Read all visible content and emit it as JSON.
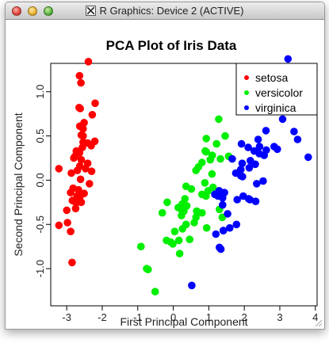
{
  "window": {
    "title": "R Graphics: Device 2 (ACTIVE)"
  },
  "chart_data": {
    "type": "scatter",
    "title": "PCA Plot of Iris Data",
    "xlabel": "First Principal Component",
    "ylabel": "Second Principal Component",
    "xlim": [
      -3.45,
      4.05
    ],
    "ylim": [
      -1.42,
      1.32
    ],
    "xticks": [
      "-3",
      "-2",
      "-1",
      "0",
      "1",
      "2",
      "3",
      "4"
    ],
    "xtick_values": [
      -3,
      -2,
      -1,
      0,
      1,
      2,
      3,
      4
    ],
    "yticks": [
      "-1.0",
      "-0.5",
      "0.0",
      "0.5",
      "1.0"
    ],
    "ytick_values": [
      -1.0,
      -0.5,
      0.0,
      0.5,
      1.0
    ],
    "grid": false,
    "legend_position": "top-right",
    "series": [
      {
        "name": "setosa",
        "color": "#ff0000",
        "points": [
          [
            -2.68,
            0.32
          ],
          [
            -2.71,
            -0.18
          ],
          [
            -2.89,
            -0.14
          ],
          [
            -2.75,
            -0.32
          ],
          [
            -2.73,
            0.33
          ],
          [
            -2.28,
            0.74
          ],
          [
            -2.82,
            -0.09
          ],
          [
            -2.63,
            0.16
          ],
          [
            -2.89,
            -0.58
          ],
          [
            -2.67,
            -0.11
          ],
          [
            -2.51,
            0.65
          ],
          [
            -2.61,
            0.01
          ],
          [
            -2.79,
            -0.24
          ],
          [
            -3.22,
            -0.51
          ],
          [
            -2.64,
            1.18
          ],
          [
            -2.39,
            1.34
          ],
          [
            -2.62,
            0.81
          ],
          [
            -2.65,
            0.31
          ],
          [
            -2.2,
            0.87
          ],
          [
            -2.59,
            0.51
          ],
          [
            -2.31,
            0.39
          ],
          [
            -2.54,
            0.43
          ],
          [
            -3.22,
            0.13
          ],
          [
            -2.3,
            0.1
          ],
          [
            -2.36,
            -0.04
          ],
          [
            -2.51,
            -0.15
          ],
          [
            -2.47,
            0.13
          ],
          [
            -2.56,
            0.37
          ],
          [
            -2.64,
            0.31
          ],
          [
            -2.63,
            -0.19
          ],
          [
            -2.59,
            -0.25
          ],
          [
            -2.41,
            0.42
          ],
          [
            -2.65,
            0.82
          ],
          [
            -2.6,
            1.1
          ],
          [
            -2.67,
            -0.11
          ],
          [
            -2.87,
            0.08
          ],
          [
            -2.63,
            0.61
          ],
          [
            -2.8,
            0.25
          ],
          [
            -2.98,
            -0.48
          ],
          [
            -2.59,
            0.23
          ],
          [
            -2.77,
            0.27
          ],
          [
            -2.85,
            -0.93
          ],
          [
            -3.0,
            -0.34
          ],
          [
            -2.41,
            0.19
          ],
          [
            -2.21,
            0.44
          ],
          [
            -2.71,
            -0.25
          ],
          [
            -2.54,
            0.5
          ],
          [
            -2.84,
            -0.23
          ],
          [
            -2.54,
            0.58
          ],
          [
            -2.7,
            0.11
          ]
        ]
      },
      {
        "name": "versicolor",
        "color": "#00ee00",
        "points": [
          [
            1.28,
            0.69
          ],
          [
            0.93,
            0.32
          ],
          [
            1.46,
            0.5
          ],
          [
            0.18,
            -0.83
          ],
          [
            1.09,
            0.07
          ],
          [
            0.64,
            -0.42
          ],
          [
            1.1,
            0.28
          ],
          [
            -0.75,
            -1.0
          ],
          [
            1.04,
            0.23
          ],
          [
            -0.01,
            -0.72
          ],
          [
            -0.51,
            -1.26
          ],
          [
            0.51,
            -0.1
          ],
          [
            0.26,
            -0.55
          ],
          [
            0.98,
            -0.12
          ],
          [
            -0.17,
            -0.25
          ],
          [
            0.93,
            0.47
          ],
          [
            0.66,
            -0.35
          ],
          [
            0.23,
            -0.33
          ],
          [
            0.94,
            -0.54
          ],
          [
            0.04,
            -0.58
          ],
          [
            1.12,
            -0.08
          ],
          [
            0.36,
            -0.07
          ],
          [
            1.3,
            -0.33
          ],
          [
            0.92,
            -0.18
          ],
          [
            0.71,
            0.15
          ],
          [
            0.9,
            0.33
          ],
          [
            1.33,
            0.24
          ],
          [
            1.56,
            0.27
          ],
          [
            0.81,
            -0.16
          ],
          [
            -0.31,
            -0.37
          ],
          [
            -0.07,
            -0.7
          ],
          [
            -0.19,
            -0.68
          ],
          [
            0.14,
            -0.31
          ],
          [
            1.38,
            -0.42
          ],
          [
            0.59,
            -0.48
          ],
          [
            0.81,
            0.2
          ],
          [
            1.22,
            0.41
          ],
          [
            0.81,
            -0.37
          ],
          [
            0.25,
            -0.27
          ],
          [
            0.16,
            -0.68
          ],
          [
            0.46,
            -0.67
          ],
          [
            0.89,
            -0.03
          ],
          [
            0.23,
            -0.4
          ],
          [
            -0.71,
            -1.01
          ],
          [
            0.36,
            -0.5
          ],
          [
            0.33,
            -0.21
          ],
          [
            0.38,
            -0.29
          ],
          [
            0.64,
            0.11
          ],
          [
            -0.91,
            -0.75
          ],
          [
            0.3,
            -0.35
          ]
        ]
      },
      {
        "name": "virginica",
        "color": "#0000ff",
        "points": [
          [
            2.53,
            -0.01
          ],
          [
            1.41,
            -0.57
          ],
          [
            2.62,
            0.34
          ],
          [
            1.97,
            -0.18
          ],
          [
            2.35,
            -0.04
          ],
          [
            3.4,
            0.55
          ],
          [
            0.52,
            -1.19
          ],
          [
            2.93,
            0.35
          ],
          [
            2.32,
            -0.24
          ],
          [
            2.92,
            0.78
          ],
          [
            1.66,
            0.24
          ],
          [
            1.8,
            -0.22
          ],
          [
            2.17,
            0.22
          ],
          [
            1.34,
            -0.78
          ],
          [
            1.59,
            -0.54
          ],
          [
            1.9,
            0.12
          ],
          [
            1.95,
            0.04
          ],
          [
            3.49,
            1.17
          ],
          [
            3.8,
            0.26
          ],
          [
            1.3,
            -0.76
          ],
          [
            2.43,
            0.38
          ],
          [
            1.2,
            -0.61
          ],
          [
            3.5,
            0.46
          ],
          [
            1.39,
            -0.2
          ],
          [
            2.28,
            0.33
          ],
          [
            2.61,
            0.56
          ],
          [
            1.26,
            -0.18
          ],
          [
            1.29,
            -0.12
          ],
          [
            2.12,
            -0.21
          ],
          [
            2.39,
            0.46
          ],
          [
            2.84,
            0.38
          ],
          [
            3.23,
            1.37
          ],
          [
            2.16,
            -0.22
          ],
          [
            1.44,
            -0.14
          ],
          [
            1.78,
            -0.5
          ],
          [
            3.08,
            0.69
          ],
          [
            2.14,
            0.14
          ],
          [
            1.9,
            0.05
          ],
          [
            1.17,
            -0.16
          ],
          [
            2.11,
            0.37
          ],
          [
            2.31,
            0.18
          ],
          [
            1.92,
            0.41
          ],
          [
            1.41,
            -0.57
          ],
          [
            2.56,
            0.28
          ],
          [
            2.42,
            0.3
          ],
          [
            1.94,
            0.19
          ],
          [
            1.53,
            -0.38
          ],
          [
            1.76,
            0.08
          ],
          [
            1.9,
            0.12
          ],
          [
            1.39,
            -0.28
          ]
        ]
      }
    ]
  }
}
